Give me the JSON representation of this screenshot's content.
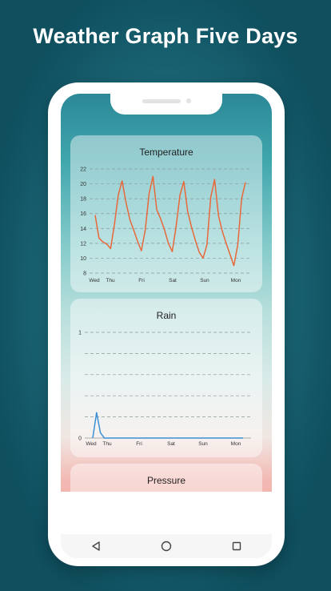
{
  "promo": {
    "title": "Weather Graph Five Days"
  },
  "cards": {
    "temperature": {
      "title": "Temperature"
    },
    "rain": {
      "title": "Rain"
    },
    "pressure": {
      "title": "Pressure"
    }
  },
  "nav": {
    "back_icon": "back-triangle-icon",
    "home_icon": "home-circle-icon",
    "recents_icon": "recents-square-icon"
  },
  "colors": {
    "temperature_line": "#e8683a",
    "rain_line": "#3b8fd6"
  },
  "chart_data": [
    {
      "type": "line",
      "title": "Temperature",
      "x_ticks": [
        "Wed",
        "Thu",
        "Fri",
        "Sat",
        "Sun",
        "Mon"
      ],
      "y_ticks": [
        8,
        10,
        12,
        14,
        16,
        18,
        20,
        22
      ],
      "ylim": [
        8,
        22
      ],
      "grid": true,
      "series": [
        {
          "values": [
            15.8,
            12.7,
            12.2,
            11.9,
            11.3,
            14.5,
            18.5,
            20.4,
            17.5,
            15.2,
            13.8,
            12.3,
            11.0,
            13.8,
            18.7,
            21.0,
            16.5,
            15.3,
            13.8,
            12.0,
            10.9,
            14.2,
            18.5,
            20.3,
            16.3,
            14.2,
            12.4,
            10.8,
            10.0,
            11.8,
            18.2,
            20.6,
            15.7,
            13.6,
            12.0,
            10.5,
            9.0,
            11.8,
            18.0,
            20.2
          ]
        }
      ]
    },
    {
      "type": "line",
      "title": "Rain",
      "x_ticks": [
        "Wed",
        "Thu",
        "Fri",
        "Sat",
        "Sun",
        "Mon"
      ],
      "y_ticks": [
        0,
        1
      ],
      "ylim": [
        0,
        1
      ],
      "grid": true,
      "series": [
        {
          "values": [
            0.0,
            0.24,
            0.05,
            0.0,
            0.0,
            0.0,
            0.0,
            0.0,
            0.0,
            0.0,
            0.0,
            0.0,
            0.0,
            0.0,
            0.0,
            0.0,
            0.0,
            0.0,
            0.0,
            0.0,
            0.0,
            0.0,
            0.0,
            0.0,
            0.0,
            0.0,
            0.0,
            0.0,
            0.0,
            0.0,
            0.0,
            0.0,
            0.0,
            0.0,
            0.0,
            0.0,
            0.0,
            0.0,
            0.0,
            0.0
          ]
        }
      ]
    }
  ]
}
